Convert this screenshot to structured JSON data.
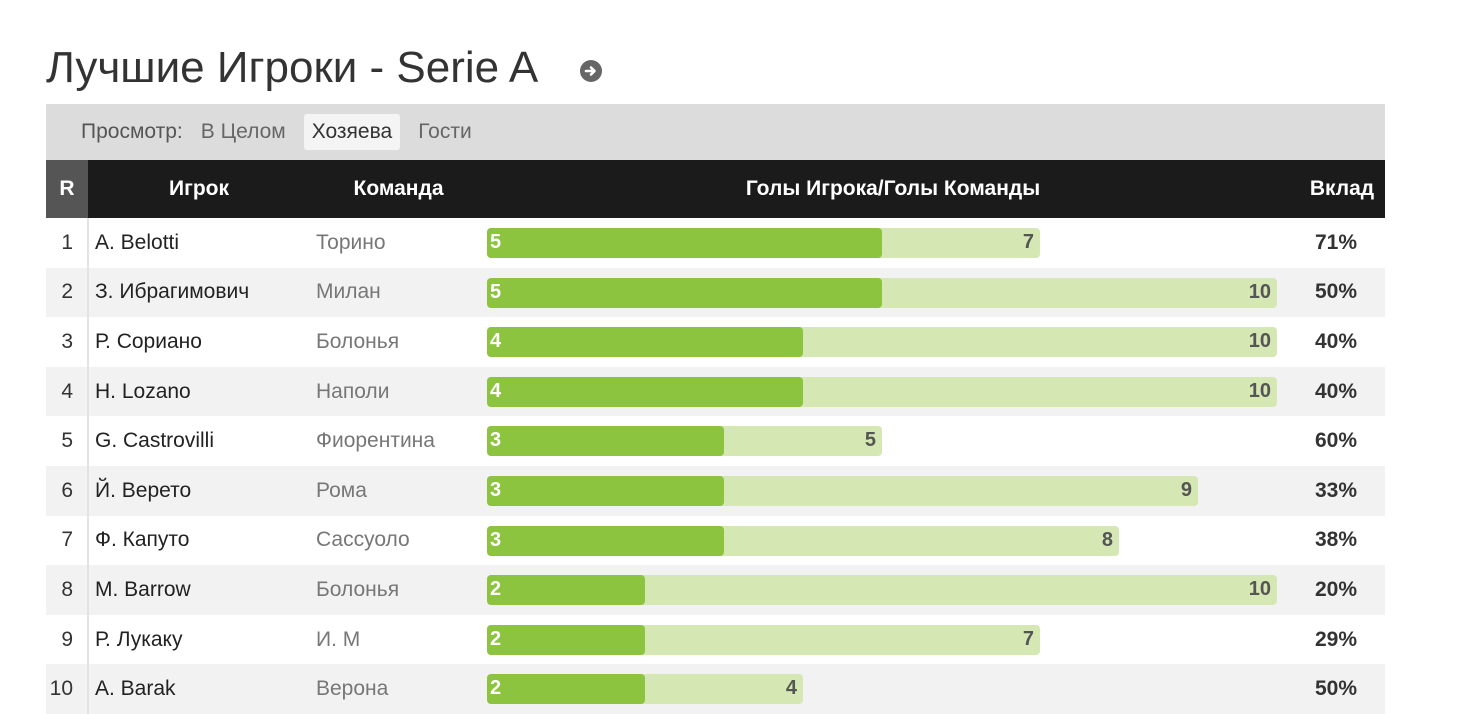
{
  "header": {
    "title": "Лучшие Игроки - Serie A",
    "info_icon": "circle-arrow-right-icon"
  },
  "filter": {
    "label": "Просмотр:",
    "options": [
      "В Целом",
      "Хозяева",
      "Гости"
    ],
    "selected": "Хозяева"
  },
  "table": {
    "columns": {
      "rank": "R",
      "player": "Игрок",
      "team": "Команда",
      "goals": "Голы Игрока/Голы Команды",
      "share": "Вклад"
    },
    "rows": [
      {
        "rank": "1",
        "player": "A. Belotti",
        "team": "Торино",
        "player_goals": 5,
        "team_goals": 7,
        "share": "71%"
      },
      {
        "rank": "2",
        "player": "З. Ибрагимович",
        "team": "Милан",
        "player_goals": 5,
        "team_goals": 10,
        "share": "50%"
      },
      {
        "rank": "3",
        "player": "Р. Сориано",
        "team": "Болонья",
        "player_goals": 4,
        "team_goals": 10,
        "share": "40%"
      },
      {
        "rank": "4",
        "player": "H. Lozano",
        "team": "Наполи",
        "player_goals": 4,
        "team_goals": 10,
        "share": "40%"
      },
      {
        "rank": "5",
        "player": "G. Castrovilli",
        "team": "Фиорентина",
        "player_goals": 3,
        "team_goals": 5,
        "share": "60%"
      },
      {
        "rank": "6",
        "player": "Й. Верето",
        "team": "Рома",
        "player_goals": 3,
        "team_goals": 9,
        "share": "33%"
      },
      {
        "rank": "7",
        "player": "Ф. Капуто",
        "team": "Сассуоло",
        "player_goals": 3,
        "team_goals": 8,
        "share": "38%"
      },
      {
        "rank": "8",
        "player": "M. Barrow",
        "team": "Болонья",
        "player_goals": 2,
        "team_goals": 10,
        "share": "20%"
      },
      {
        "rank": "9",
        "player": "Р. Лукаку",
        "team": "И. М",
        "player_goals": 2,
        "team_goals": 7,
        "share": "29%"
      },
      {
        "rank": "10",
        "player": "A. Barak",
        "team": "Верона",
        "player_goals": 2,
        "team_goals": 4,
        "share": "50%"
      }
    ]
  },
  "colors": {
    "bar_player": "#8dc43f",
    "bar_team": "#d5e8b3",
    "header_bg": "#1b1b1b",
    "filter_bg": "#dcdcdc"
  }
}
